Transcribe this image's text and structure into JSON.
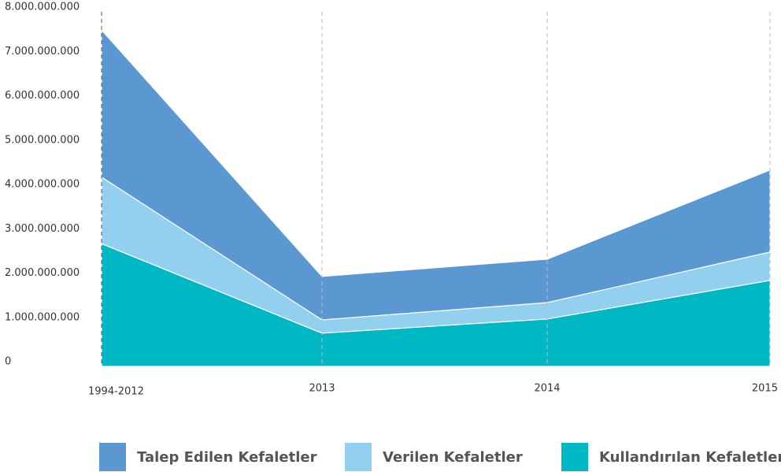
{
  "chart_data": {
    "type": "area",
    "stacked": true,
    "categories": [
      "1994-2012",
      "2013",
      "2014",
      "2015"
    ],
    "series": [
      {
        "name": "Talep Edilen Kefaletler",
        "color": "#5b97d1",
        "values": [
          3320000000,
          980000000,
          980000000,
          1850000000
        ]
      },
      {
        "name": "Verilen Kefaletler",
        "color": "#93cfef",
        "values": [
          1500000000,
          300000000,
          370000000,
          640000000
        ]
      },
      {
        "name": "Kullandırılan Kefaletler",
        "color": "#00b8c4",
        "values": [
          2770000000,
          750000000,
          1070000000,
          1940000000
        ]
      }
    ],
    "ylim": [
      0,
      8000000000
    ],
    "yticks": [
      0,
      {
        "value": 1000000000,
        "label": "1.000.000.000"
      },
      {
        "value": 2000000000,
        "label": "2.000.000.000"
      },
      {
        "value": 3000000000,
        "label": "3.000.000.000"
      },
      {
        "value": 4000000000,
        "label": "4.000.000.000"
      },
      {
        "value": 5000000000,
        "label": "5.000.000.000"
      },
      {
        "value": 6000000000,
        "label": "6.000.000.000"
      },
      {
        "value": 7000000000,
        "label": "7.000.000.000"
      },
      {
        "value": 8000000000,
        "label": "8.000.000.000"
      }
    ],
    "grid": "vertical-dashed",
    "legend": "bottom"
  }
}
